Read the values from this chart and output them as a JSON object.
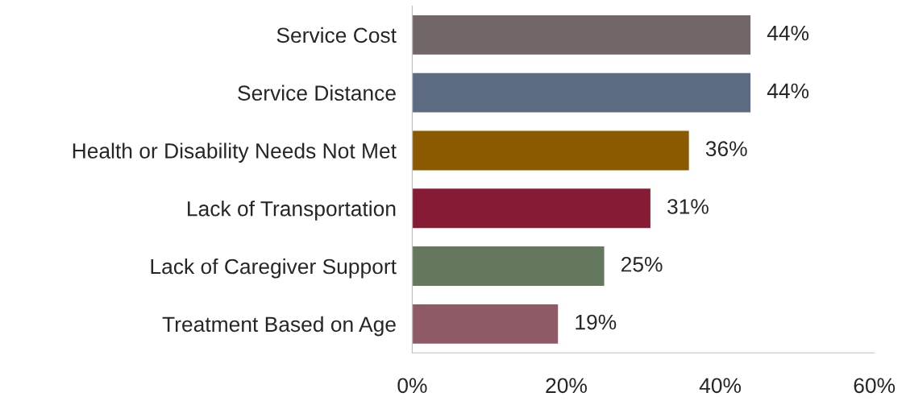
{
  "chart_data": {
    "type": "bar",
    "orientation": "horizontal",
    "categories": [
      "Service Cost",
      "Service Distance",
      "Health or Disability Needs Not Met",
      "Lack of Transportation",
      "Lack of Caregiver Support",
      "Treatment Based on Age"
    ],
    "values": [
      44,
      44,
      36,
      31,
      25,
      19
    ],
    "colors": [
      "#716767",
      "#5c6b82",
      "#8b5a00",
      "#851b35",
      "#65785d",
      "#8e5a66"
    ],
    "value_labels": [
      "44%",
      "44%",
      "36%",
      "31%",
      "25%",
      "19%"
    ],
    "xlim": [
      0,
      60
    ],
    "xticks": [
      {
        "value": 0,
        "label": "0%"
      },
      {
        "value": 20,
        "label": "20%"
      },
      {
        "value": 40,
        "label": "40%"
      },
      {
        "value": 60,
        "label": "60%"
      }
    ],
    "grid": false,
    "legend": false
  }
}
